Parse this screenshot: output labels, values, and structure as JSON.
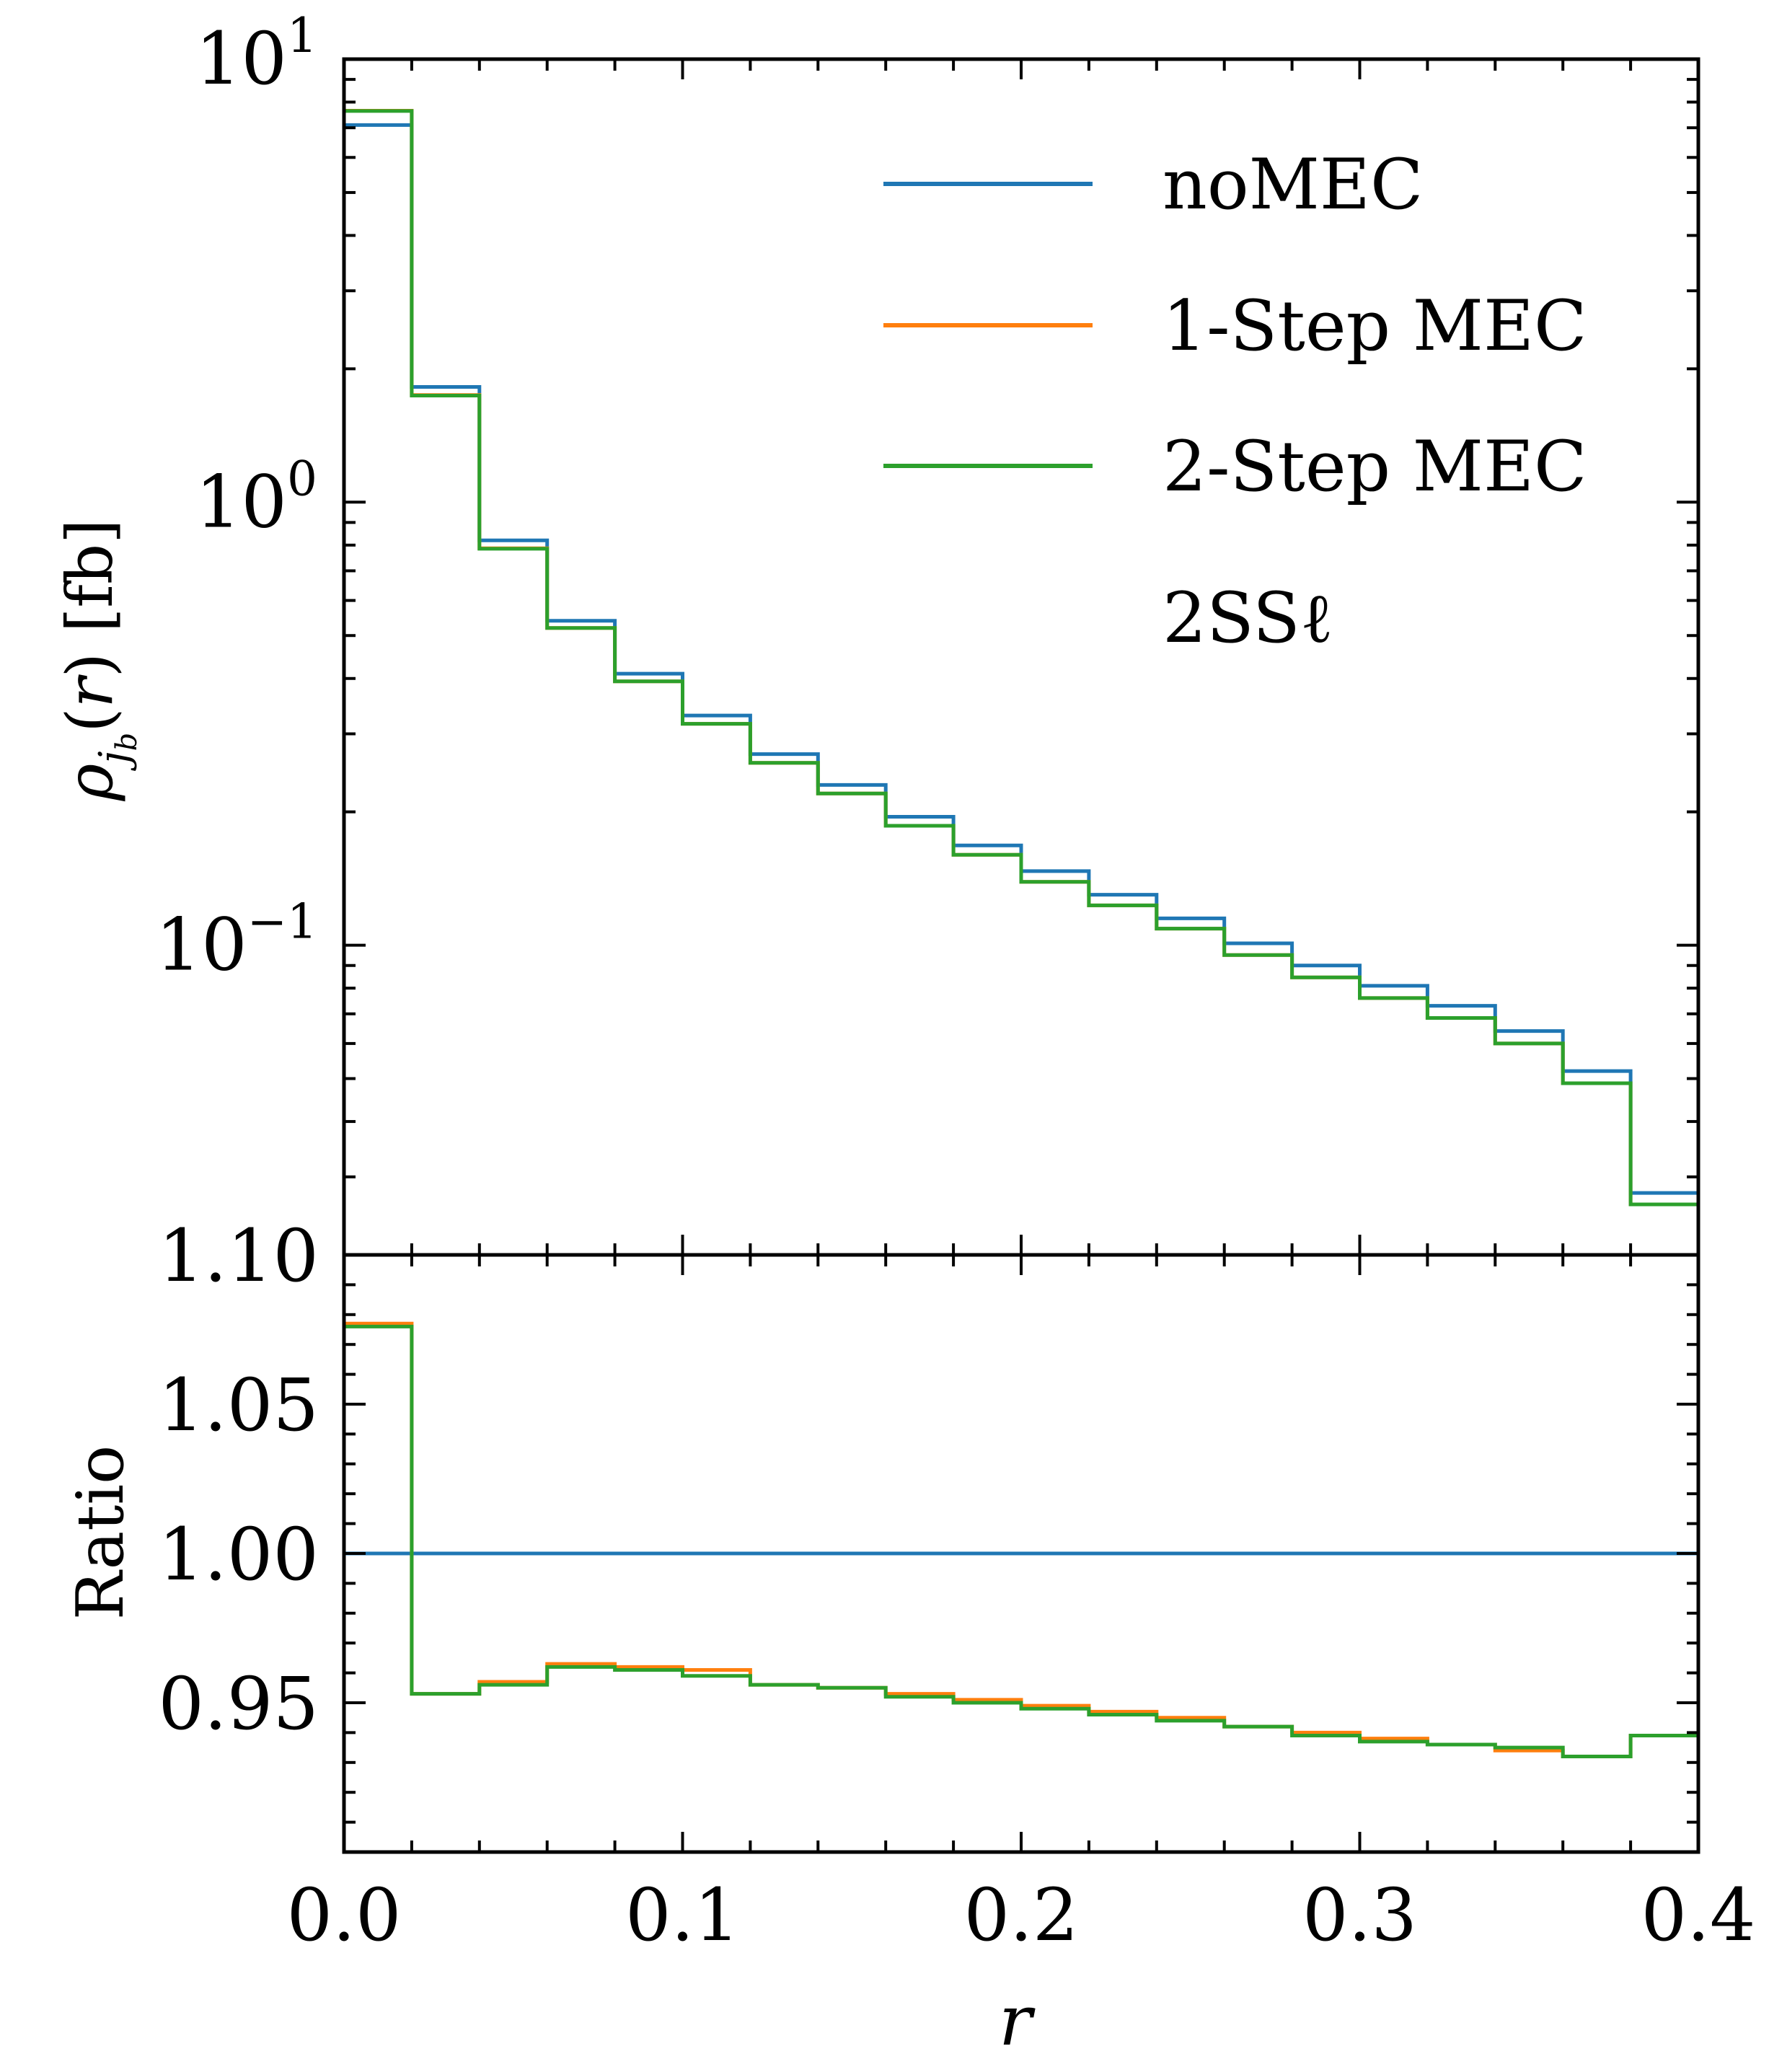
{
  "chart_data": [
    {
      "type": "line",
      "panel": "main",
      "step": true,
      "yscale": "log",
      "ylabel": "ρ_jb(r) [fb]",
      "ylim": [
        0.02,
        10
      ],
      "xlim": [
        0.0,
        0.4
      ],
      "bin_edges": [
        0.0,
        0.02,
        0.04,
        0.06,
        0.08,
        0.1,
        0.12,
        0.14,
        0.16,
        0.18,
        0.2,
        0.22,
        0.24,
        0.26,
        0.28,
        0.3,
        0.32,
        0.34,
        0.36,
        0.38,
        0.4
      ],
      "yticks": [
        {
          "value": 0.1,
          "base": "10",
          "exp": "−1"
        },
        {
          "value": 1,
          "base": "10",
          "exp": "0"
        },
        {
          "value": 10,
          "base": "10",
          "exp": "1"
        }
      ],
      "series": [
        {
          "name": "noMEC",
          "color": "#1f77b4",
          "values": [
            7.1,
            1.82,
            0.82,
            0.54,
            0.41,
            0.33,
            0.27,
            0.23,
            0.195,
            0.168,
            0.147,
            0.13,
            0.115,
            0.101,
            0.09,
            0.081,
            0.073,
            0.064,
            0.052,
            0.0276
          ]
        },
        {
          "name": "1-Step MEC",
          "color": "#ff7f0e",
          "values": [
            7.65,
            1.745,
            0.787,
            0.52,
            0.394,
            0.316,
            0.258,
            0.22,
            0.186,
            0.16,
            0.139,
            0.123,
            0.109,
            0.095,
            0.0846,
            0.076,
            0.0685,
            0.06,
            0.0488,
            0.026
          ]
        },
        {
          "name": "2-Step MEC",
          "color": "#2ca02c",
          "values": [
            7.64,
            1.74,
            0.785,
            0.52,
            0.394,
            0.316,
            0.258,
            0.22,
            0.186,
            0.16,
            0.139,
            0.123,
            0.109,
            0.095,
            0.0846,
            0.076,
            0.0685,
            0.06,
            0.0488,
            0.026
          ]
        }
      ],
      "legend": {
        "placement": "top-right",
        "entries": [
          "noMEC",
          "1-Step MEC",
          "2-Step MEC"
        ],
        "note": "2SSℓ"
      }
    },
    {
      "type": "line",
      "panel": "ratio",
      "step": true,
      "yscale": "linear",
      "ylabel": "Ratio",
      "xlabel": "r",
      "ylim": [
        0.9,
        1.1
      ],
      "xlim": [
        0.0,
        0.4
      ],
      "yticks": [
        "0.95",
        "1.00",
        "1.05",
        "1.10"
      ],
      "ytick_values": [
        0.95,
        1.0,
        1.05,
        1.1
      ],
      "xticks": [
        "0.0",
        "0.1",
        "0.2",
        "0.3",
        "0.4"
      ],
      "xtick_values": [
        0.0,
        0.1,
        0.2,
        0.3,
        0.4
      ],
      "bin_edges": [
        0.0,
        0.02,
        0.04,
        0.06,
        0.08,
        0.1,
        0.12,
        0.14,
        0.16,
        0.18,
        0.2,
        0.22,
        0.24,
        0.26,
        0.28,
        0.3,
        0.32,
        0.34,
        0.36,
        0.38,
        0.4
      ],
      "series": [
        {
          "name": "noMEC",
          "color": "#1f77b4",
          "values": [
            1,
            1,
            1,
            1,
            1,
            1,
            1,
            1,
            1,
            1,
            1,
            1,
            1,
            1,
            1,
            1,
            1,
            1,
            1,
            1
          ]
        },
        {
          "name": "1-Step MEC",
          "color": "#ff7f0e",
          "values": [
            1.077,
            0.953,
            0.957,
            0.963,
            0.962,
            0.961,
            0.956,
            0.955,
            0.953,
            0.951,
            0.949,
            0.947,
            0.945,
            0.942,
            0.94,
            0.938,
            0.936,
            0.934,
            0.932,
            0.939
          ]
        },
        {
          "name": "2-Step MEC",
          "color": "#2ca02c",
          "values": [
            1.076,
            0.953,
            0.956,
            0.962,
            0.961,
            0.959,
            0.956,
            0.955,
            0.952,
            0.95,
            0.948,
            0.946,
            0.944,
            0.942,
            0.939,
            0.937,
            0.936,
            0.935,
            0.932,
            0.939
          ]
        }
      ]
    }
  ]
}
